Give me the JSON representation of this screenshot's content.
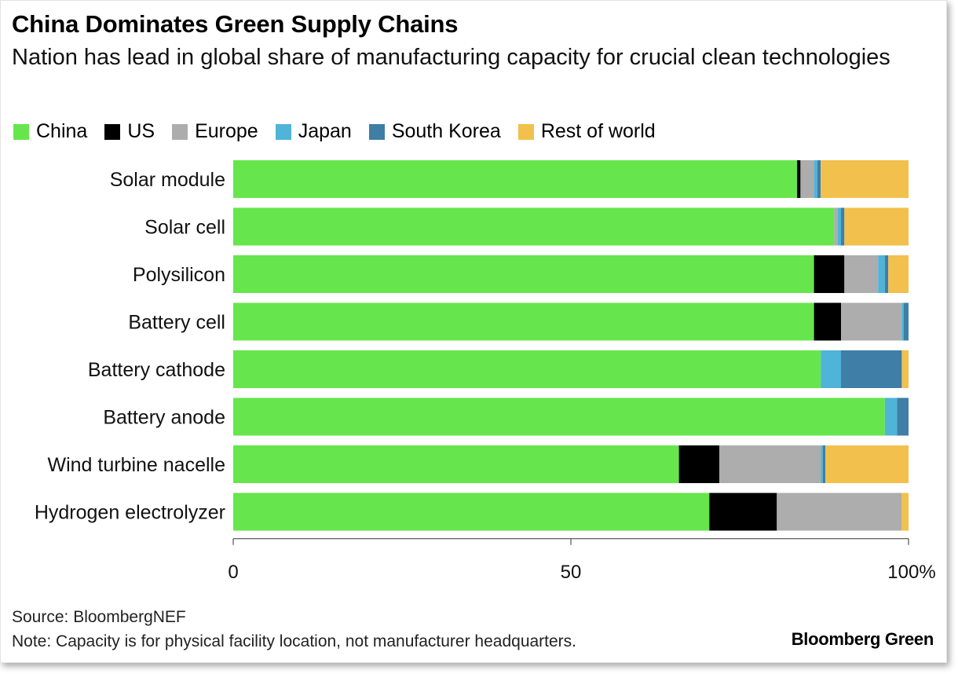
{
  "header": {
    "title": "China Dominates Green Supply Chains",
    "subtitle": "Nation has lead in global share of manufacturing capacity for crucial clean technologies"
  },
  "footer": {
    "source": "Source: BloombergNEF",
    "note": "Note: Capacity is for physical facility location, not manufacturer headquarters.",
    "brand": "Bloomberg Green"
  },
  "chart_data": {
    "type": "bar",
    "orientation": "horizontal",
    "stacked": true,
    "title": "China Dominates Green Supply Chains",
    "subtitle": "Nation has lead in global share of manufacturing capacity for crucial clean technologies",
    "xlabel": "",
    "ylabel": "",
    "xlim": [
      0,
      100
    ],
    "x_ticks": [
      {
        "value": 0,
        "label": "0"
      },
      {
        "value": 50,
        "label": "50"
      },
      {
        "value": 100,
        "label": "100%"
      }
    ],
    "grid": false,
    "legend_position": "top-left",
    "categories": [
      "Solar module",
      "Solar cell",
      "Polysilicon",
      "Battery cell",
      "Battery cathode",
      "Battery anode",
      "Wind turbine nacelle",
      "Hydrogen electrolyzer"
    ],
    "series": [
      {
        "name": "China",
        "color": "#66e64c",
        "values": [
          83.5,
          89,
          86,
          86,
          87,
          96.5,
          66,
          70.5
        ]
      },
      {
        "name": "US",
        "color": "#000000",
        "values": [
          0.5,
          0,
          4.5,
          4,
          0,
          0,
          6,
          10
        ]
      },
      {
        "name": "Europe",
        "color": "#adadad",
        "values": [
          2,
          0.5,
          5,
          9,
          0,
          0,
          15,
          18.5
        ]
      },
      {
        "name": "Japan",
        "color": "#4fb4d8",
        "values": [
          0.5,
          0.5,
          1,
          0.3,
          3,
          1.8,
          0.3,
          0
        ]
      },
      {
        "name": "South Korea",
        "color": "#3f7ea6",
        "values": [
          0.5,
          0.5,
          0.5,
          0.7,
          9,
          1.7,
          0.4,
          0
        ]
      },
      {
        "name": "Rest of world",
        "color": "#f2c04c",
        "values": [
          13,
          9.5,
          3,
          0,
          1,
          0,
          12.3,
          1
        ]
      }
    ]
  }
}
